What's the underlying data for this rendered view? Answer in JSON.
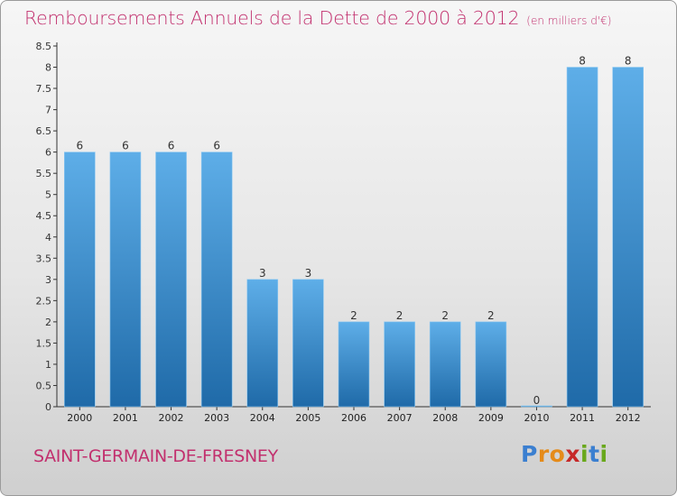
{
  "title": "Remboursements Annuels de la Dette de 2000 à 2012",
  "subtitle": "(en milliers d'€)",
  "commune": "SAINT-GERMAIN-DE-FRESNEY",
  "logo": {
    "text": "Proxiti",
    "letters": [
      "P",
      "r",
      "o",
      "x",
      "i",
      "t",
      "i"
    ],
    "colors": [
      "#3b7fd0",
      "#e58b1a",
      "#e58b1a",
      "#c62828",
      "#69a81c",
      "#3b7fd0",
      "#69a81c"
    ]
  },
  "colors": {
    "title": "#c2306e",
    "bar_top": "#5eaee8",
    "bar_bottom": "#1f6aa8",
    "axis": "#333333"
  },
  "chart_data": {
    "type": "bar",
    "categories": [
      "2000",
      "2001",
      "2002",
      "2003",
      "2004",
      "2005",
      "2006",
      "2007",
      "2008",
      "2009",
      "2010",
      "2011",
      "2012"
    ],
    "values": [
      6,
      6,
      6,
      6,
      3,
      3,
      2,
      2,
      2,
      2,
      0,
      8,
      8
    ],
    "data_labels": [
      "6",
      "6",
      "6",
      "6",
      "3",
      "3",
      "2",
      "2",
      "2",
      "2",
      "0",
      "8",
      "8"
    ],
    "y_ticks": [
      "0",
      "0.5",
      "1",
      "1.5",
      "2",
      "2.5",
      "3",
      "3.5",
      "4",
      "4.5",
      "5",
      "5.5",
      "6",
      "6.5",
      "7",
      "7.5",
      "8",
      "8.5"
    ],
    "ylim": [
      0,
      8.5
    ],
    "grid": false
  }
}
